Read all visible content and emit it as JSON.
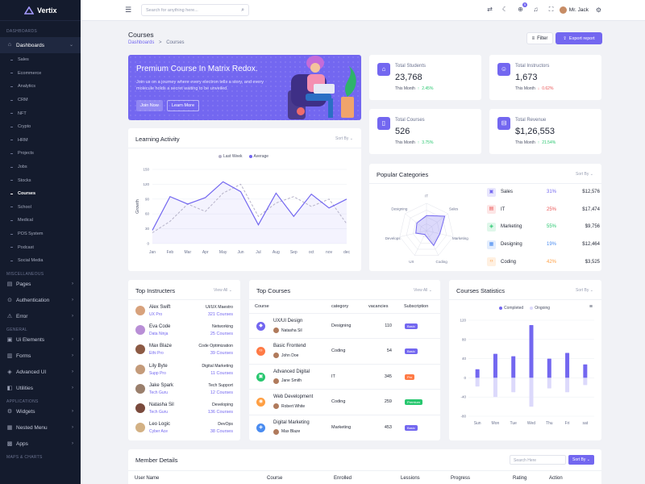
{
  "brand": {
    "name": "Vertix"
  },
  "sidebar": {
    "sections": [
      {
        "title": "DASHBOARDS"
      },
      {
        "title": "MISCELLANEOUS"
      },
      {
        "title": "GENERAL"
      },
      {
        "title": "APPLICATIONS"
      },
      {
        "title": "MAPS & CHARTS"
      }
    ],
    "dashboards_label": "Dashboards",
    "sub_items": [
      "Sales",
      "Ecommerce",
      "Analytics",
      "CRM",
      "NFT",
      "Crypto",
      "HRM",
      "Projects",
      "Jobs",
      "Stocks",
      "Courses",
      "School",
      "Medical",
      "POS System",
      "Podcast",
      "Social Media"
    ],
    "misc_items": [
      "Pages",
      "Authentication",
      "Error"
    ],
    "general_items": [
      "Ui Elements",
      "Forms",
      "Advanced UI",
      "Utilities"
    ],
    "app_items": [
      "Widgets",
      "Nested Menu",
      "Apps"
    ]
  },
  "header": {
    "search_placeholder": "Search for anything here...",
    "user_name": "Mr. Jack",
    "cart_badge": "5"
  },
  "page": {
    "title": "Courses",
    "crumb_root": "Dashboards",
    "crumb_sep": ">",
    "crumb_current": "Courses",
    "filter_label": "Filter",
    "export_label": "Export report"
  },
  "banner": {
    "title": "Premium Course In Matrix Redox.",
    "text": "Join us on a journey where every electron tells a story, and every molecule holds a secret waiting to be unveiled.",
    "join_label": "Join Now",
    "learn_label": "Learn More"
  },
  "stats": [
    {
      "label": "Total Students",
      "value": "23,768",
      "period": "This Month",
      "change": "2.45%",
      "dir": "up"
    },
    {
      "label": "Total Instructors",
      "value": "1,673",
      "period": "This Month",
      "change": "0.62%",
      "dir": "down"
    },
    {
      "label": "Total Courses",
      "value": "526",
      "period": "This Month",
      "change": "3.75%",
      "dir": "up"
    },
    {
      "label": "Total Revenue",
      "value": "$1,26,553",
      "period": "This Month",
      "change": "21.54%",
      "dir": "up"
    }
  ],
  "learning": {
    "title": "Learning Activity",
    "sort_label": "Sort By",
    "legend_last": "Last Week",
    "legend_avg": "Average",
    "ylabel": "Growth"
  },
  "popular": {
    "title": "Popular Categories",
    "sort_label": "Sort By",
    "items": [
      {
        "name": "Sales",
        "pct": "31%",
        "value": "$12,576",
        "color": "#7367f0",
        "bg": "#e8e6fd",
        "icon": "▣"
      },
      {
        "name": "IT",
        "pct": "25%",
        "value": "$17,474",
        "color": "#ea5455",
        "bg": "#fde6e6",
        "icon": "▤"
      },
      {
        "name": "Marketing",
        "pct": "55%",
        "value": "$9,756",
        "color": "#28c76f",
        "bg": "#dff7ea",
        "icon": "◈"
      },
      {
        "name": "Designing",
        "pct": "19%",
        "value": "$12,464",
        "color": "#4a8cf0",
        "bg": "#e3edfd",
        "icon": "▦"
      },
      {
        "name": "Coding",
        "pct": "42%",
        "value": "$3,525",
        "color": "#ff9f43",
        "bg": "#fff0e1",
        "icon": "‹›"
      }
    ]
  },
  "radar_labels": [
    "IT",
    "Sales",
    "Marketing",
    "Coding",
    "UX",
    "Develops",
    "Designing"
  ],
  "instructors": {
    "title": "Top Instructers",
    "view_label": "View All",
    "items": [
      {
        "name": "Alex Swift",
        "role": "UX Pro",
        "category": "UI/UX Maestro",
        "count": "321 Courses",
        "color": "#d8a27c"
      },
      {
        "name": "Eva Code",
        "role": "Data Ninja",
        "category": "Networking",
        "count": "25 Courses",
        "color": "#b98fd6"
      },
      {
        "name": "Max Blaze",
        "role": "Ethi Pro",
        "category": "Code Optimization",
        "count": "39 Courses",
        "color": "#8c5a44"
      },
      {
        "name": "Lily Byte",
        "role": "Supp Pro",
        "category": "Digital Marketing",
        "count": "11 Courses",
        "color": "#c49b7a"
      },
      {
        "name": "Jake Spark",
        "role": "Tech Guru",
        "category": "Tech Support",
        "count": "12 Courses",
        "color": "#9a7f6c"
      },
      {
        "name": "Natasha Sil",
        "role": "Tech Guru",
        "category": "Developing",
        "count": "136 Courses",
        "color": "#7a4a3c"
      },
      {
        "name": "Leo Logic",
        "role": "Cyber Ace",
        "category": "DevOps",
        "count": "38 Courses",
        "color": "#d3b184"
      }
    ]
  },
  "top_courses": {
    "title": "Top Courses",
    "view_label": "View All",
    "headers": [
      "Course",
      "category",
      "vacancies",
      "Subscription"
    ],
    "items": [
      {
        "name": "UX/UI Design",
        "author": "Natasha Sil",
        "category": "Designing",
        "vacancies": "110",
        "sub": "Basic",
        "sub_color": "#7367f0",
        "icon_color": "#7367f0",
        "icon": "◆"
      },
      {
        "name": "Basic Frontend",
        "author": "John Doe",
        "category": "Coding",
        "vacancies": "54",
        "sub": "Basic",
        "sub_color": "#7367f0",
        "icon_color": "#ff7a45",
        "icon": "‹›"
      },
      {
        "name": "Advanced Digital",
        "author": "Jane Smith",
        "category": "IT",
        "vacancies": "345",
        "sub": "Pro",
        "sub_color": "#ff7a45",
        "icon_color": "#28c76f",
        "icon": "▣"
      },
      {
        "name": "Web Development",
        "author": "Robert White",
        "category": "Coding",
        "vacancies": "259",
        "sub": "Premium",
        "sub_color": "#28c76f",
        "icon_color": "#ff9f43",
        "icon": "◉"
      },
      {
        "name": "Digital Marketing",
        "author": "Max Blaze",
        "category": "Marketing",
        "vacancies": "453",
        "sub": "Basic",
        "sub_color": "#7367f0",
        "icon_color": "#4a8cf0",
        "icon": "◈"
      }
    ]
  },
  "course_stats": {
    "title": "Courses Statistics",
    "sort_label": "Sort By",
    "legend_completed": "Completed",
    "legend_ongoing": "Ongoing"
  },
  "member": {
    "title": "Member Details",
    "search_placeholder": "Search Here",
    "sort_label": "Sort By",
    "headers": [
      "User Name",
      "Course",
      "Enrolled",
      "Lessions",
      "Progress",
      "Rating",
      "Action"
    ]
  },
  "chart_data": [
    {
      "type": "line",
      "title": "Learning Activity",
      "ylabel": "Growth",
      "categories": [
        "Jan",
        "Feb",
        "Mar",
        "Apr",
        "May",
        "Jun",
        "Jul",
        "Aug",
        "Sep",
        "oct",
        "nov",
        "dec"
      ],
      "ylim": [
        0,
        150
      ],
      "yticks": [
        0,
        30,
        60,
        90,
        120,
        150
      ],
      "series": [
        {
          "name": "Last Week",
          "values": [
            27,
            95,
            80,
            93,
            125,
            105,
            38,
            102,
            55,
            100,
            72,
            90
          ],
          "style": "solid",
          "color": "#7367f0"
        },
        {
          "name": "Average",
          "values": [
            22,
            45,
            80,
            65,
            102,
            120,
            55,
            82,
            95,
            75,
            90,
            40
          ],
          "style": "dashed",
          "color": "#b6b3c9"
        }
      ]
    },
    {
      "type": "radar",
      "title": "Popular Categories",
      "categories": [
        "IT",
        "Sales",
        "Marketing",
        "Coding",
        "UX",
        "Develops",
        "Designing"
      ],
      "values": [
        55,
        85,
        50,
        60,
        15,
        40,
        45
      ]
    },
    {
      "type": "bar",
      "title": "Courses Statistics",
      "categories": [
        "Sun",
        "Mon",
        "Tue",
        "Wed",
        "Thu",
        "Fri",
        "sat"
      ],
      "ylim": [
        -80,
        120
      ],
      "yticks": [
        -80,
        -40,
        0,
        40,
        80,
        120
      ],
      "series": [
        {
          "name": "Completed",
          "values": [
            18,
            50,
            45,
            110,
            40,
            52,
            28
          ],
          "color": "#7367f0"
        },
        {
          "name": "Ongoing",
          "values": [
            -18,
            -40,
            -30,
            -60,
            -22,
            -30,
            -15
          ],
          "color": "#dcd9fb"
        }
      ]
    }
  ]
}
